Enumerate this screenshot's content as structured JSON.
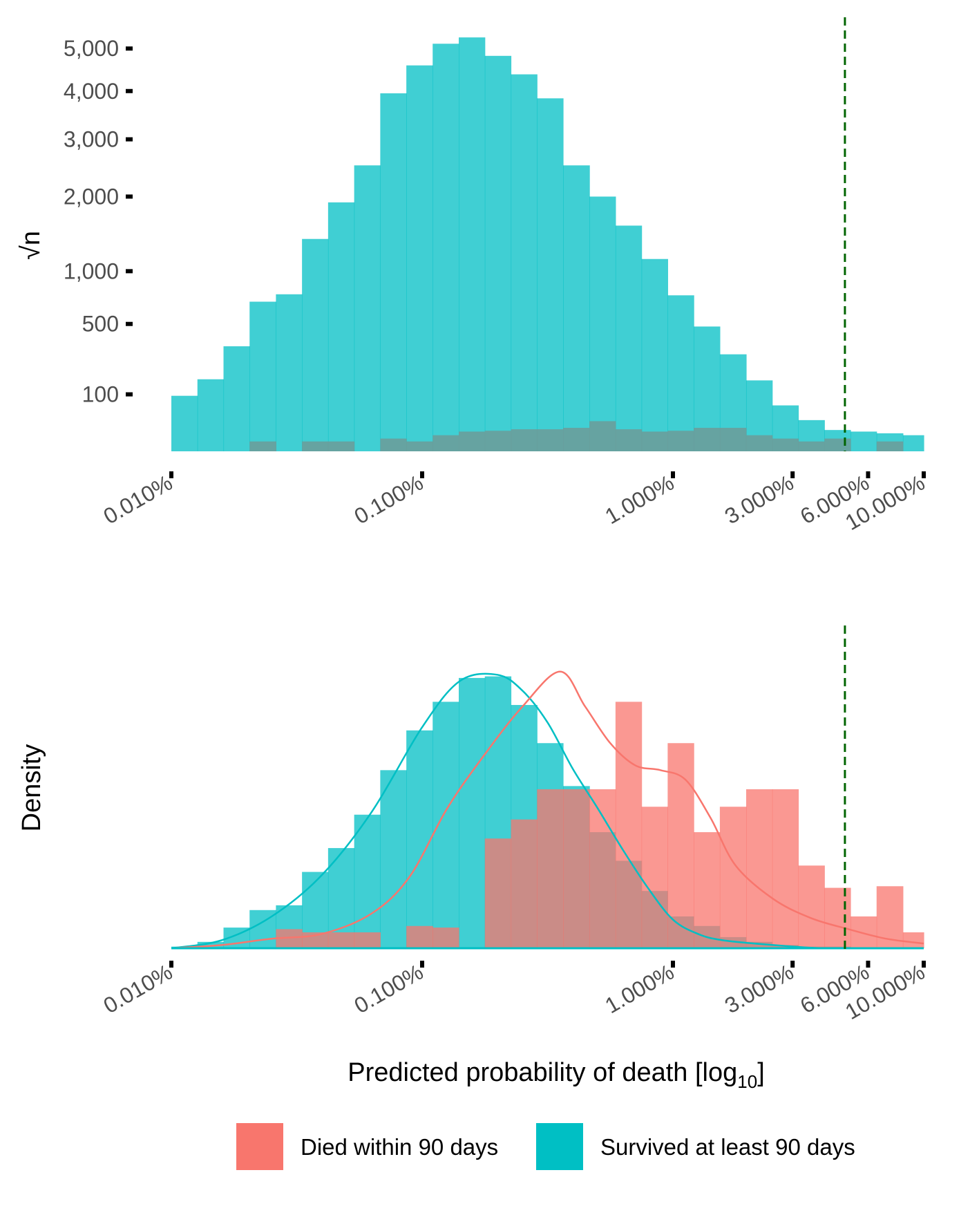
{
  "colors": {
    "died": "#F8766D",
    "survived": "#00BFC4",
    "overlap": "#5AADAB",
    "threshold": "#006400"
  },
  "chart_data": [
    {
      "type": "histogram",
      "title": "",
      "ylabel": "√n",
      "xlabel": "",
      "y_scale": "sqrt",
      "x_scale": "log10",
      "x_range": [
        0.0001,
        0.1
      ],
      "y_ticks": [
        {
          "value": 100,
          "label": "100"
        },
        {
          "value": 500,
          "label": "500"
        },
        {
          "value": 1000,
          "label": "1,000"
        },
        {
          "value": 2000,
          "label": "2,000"
        },
        {
          "value": 3000,
          "label": "3,000"
        },
        {
          "value": 4000,
          "label": "4,000"
        },
        {
          "value": 5000,
          "label": "5,000"
        }
      ],
      "x_ticks": [
        {
          "value": 0.0001,
          "label": "0.010%"
        },
        {
          "value": 0.001,
          "label": "0.100%"
        },
        {
          "value": 0.01,
          "label": "1.000%"
        },
        {
          "value": 0.03,
          "label": "3.000%"
        },
        {
          "value": 0.06,
          "label": "6.000%"
        },
        {
          "value": 0.1,
          "label": "10.000%"
        }
      ],
      "bin_edges_log10": [
        -4.0,
        -3.896,
        -3.792,
        -3.688,
        -3.583,
        -3.479,
        -3.375,
        -3.271,
        -3.167,
        -3.063,
        -2.958,
        -2.854,
        -2.75,
        -2.646,
        -2.542,
        -2.438,
        -2.333,
        -2.229,
        -2.125,
        -2.021,
        -1.917,
        -1.813,
        -1.708,
        -1.604,
        -1.5,
        -1.396,
        -1.292,
        -1.188,
        -1.083,
        -1.0
      ],
      "series": [
        {
          "name": "Survived at least 90 days",
          "values": [
            95,
            160,
            340,
            690,
            760,
            1390,
            1910,
            2520,
            3950,
            4590,
            5120,
            5280,
            4820,
            4380,
            3840,
            2520,
            2000,
            1570,
            1140,
            750,
            480,
            290,
            155,
            65,
            30,
            14,
            12,
            10,
            8
          ]
        },
        {
          "name": "Died within 90 days",
          "values": [
            0,
            0,
            0,
            3,
            0,
            3,
            3,
            0,
            5,
            3,
            8,
            12,
            13,
            15,
            15,
            17,
            28,
            15,
            12,
            13,
            17,
            17,
            8,
            5,
            3,
            5,
            0,
            3,
            0
          ]
        }
      ],
      "threshold_line": 0.0485
    },
    {
      "type": "histogram",
      "title": "",
      "ylabel": "Density",
      "xlabel": "Predicted probability of death [log",
      "xlabel_sub": "10",
      "xlabel_end": "]",
      "x_scale": "log10",
      "x_range": [
        0.0001,
        0.1
      ],
      "y_range": [
        0,
        2.6
      ],
      "x_ticks": [
        {
          "value": 0.0001,
          "label": "0.010%"
        },
        {
          "value": 0.001,
          "label": "0.100%"
        },
        {
          "value": 0.01,
          "label": "1.000%"
        },
        {
          "value": 0.03,
          "label": "3.000%"
        },
        {
          "value": 0.06,
          "label": "6.000%"
        },
        {
          "value": 0.1,
          "label": "10.000%"
        }
      ],
      "bin_edges_log10": [
        -4.0,
        -3.896,
        -3.792,
        -3.688,
        -3.583,
        -3.479,
        -3.375,
        -3.271,
        -3.167,
        -3.063,
        -2.958,
        -2.854,
        -2.75,
        -2.646,
        -2.542,
        -2.438,
        -2.333,
        -2.229,
        -2.125,
        -2.021,
        -1.917,
        -1.813,
        -1.708,
        -1.604,
        -1.5,
        -1.396,
        -1.292,
        -1.188,
        -1.083,
        -1.0
      ],
      "series": [
        {
          "name": "Survived at least 90 days",
          "values": [
            0.01,
            0.04,
            0.13,
            0.24,
            0.27,
            0.48,
            0.63,
            0.84,
            1.12,
            1.37,
            1.55,
            1.7,
            1.71,
            1.53,
            1.29,
            1.02,
            0.73,
            0.55,
            0.36,
            0.2,
            0.14,
            0.07,
            0.04,
            0.02,
            0.01,
            0.01,
            0.0,
            0.0,
            0.0
          ]
        },
        {
          "name": "Died within 90 days",
          "values": [
            0.0,
            0.0,
            0.0,
            0.0,
            0.12,
            0.1,
            0.1,
            0.1,
            0.0,
            0.14,
            0.13,
            0.0,
            0.69,
            0.81,
            1.0,
            1.0,
            1.0,
            1.55,
            0.89,
            1.29,
            0.73,
            0.89,
            1.0,
            1.0,
            0.52,
            0.38,
            0.2,
            0.39,
            0.1
          ]
        }
      ],
      "density_curves": [
        {
          "name": "Survived at least 90 days",
          "x_log10": [
            -4.0,
            -3.8,
            -3.6,
            -3.4,
            -3.2,
            -3.0,
            -2.85,
            -2.7,
            -2.6,
            -2.5,
            -2.4,
            -2.3,
            -2.2,
            -2.1,
            -2.0,
            -1.9,
            -1.8,
            -1.6,
            -1.4,
            -1.2,
            -1.0
          ],
          "y": [
            0.0,
            0.05,
            0.2,
            0.46,
            0.86,
            1.39,
            1.68,
            1.72,
            1.62,
            1.42,
            1.13,
            0.88,
            0.62,
            0.38,
            0.18,
            0.09,
            0.05,
            0.02,
            0.0,
            0.0,
            0.0
          ]
        },
        {
          "name": "Died within 90 days",
          "x_log10": [
            -4.0,
            -3.8,
            -3.6,
            -3.4,
            -3.2,
            -3.05,
            -2.9,
            -2.75,
            -2.6,
            -2.45,
            -2.35,
            -2.25,
            -2.15,
            -2.05,
            -1.95,
            -1.85,
            -1.75,
            -1.6,
            -1.45,
            -1.3,
            -1.15,
            -1.0
          ],
          "y": [
            0.0,
            0.02,
            0.06,
            0.09,
            0.22,
            0.45,
            0.88,
            1.22,
            1.52,
            1.74,
            1.52,
            1.29,
            1.15,
            1.12,
            1.06,
            0.82,
            0.52,
            0.31,
            0.19,
            0.12,
            0.06,
            0.03
          ]
        }
      ],
      "threshold_line": 0.0485
    }
  ],
  "legend": {
    "position": "bottom",
    "items": [
      {
        "label": "Died within 90 days",
        "color": "#F8766D"
      },
      {
        "label": "Survived at least 90 days",
        "color": "#00BFC4"
      }
    ]
  }
}
